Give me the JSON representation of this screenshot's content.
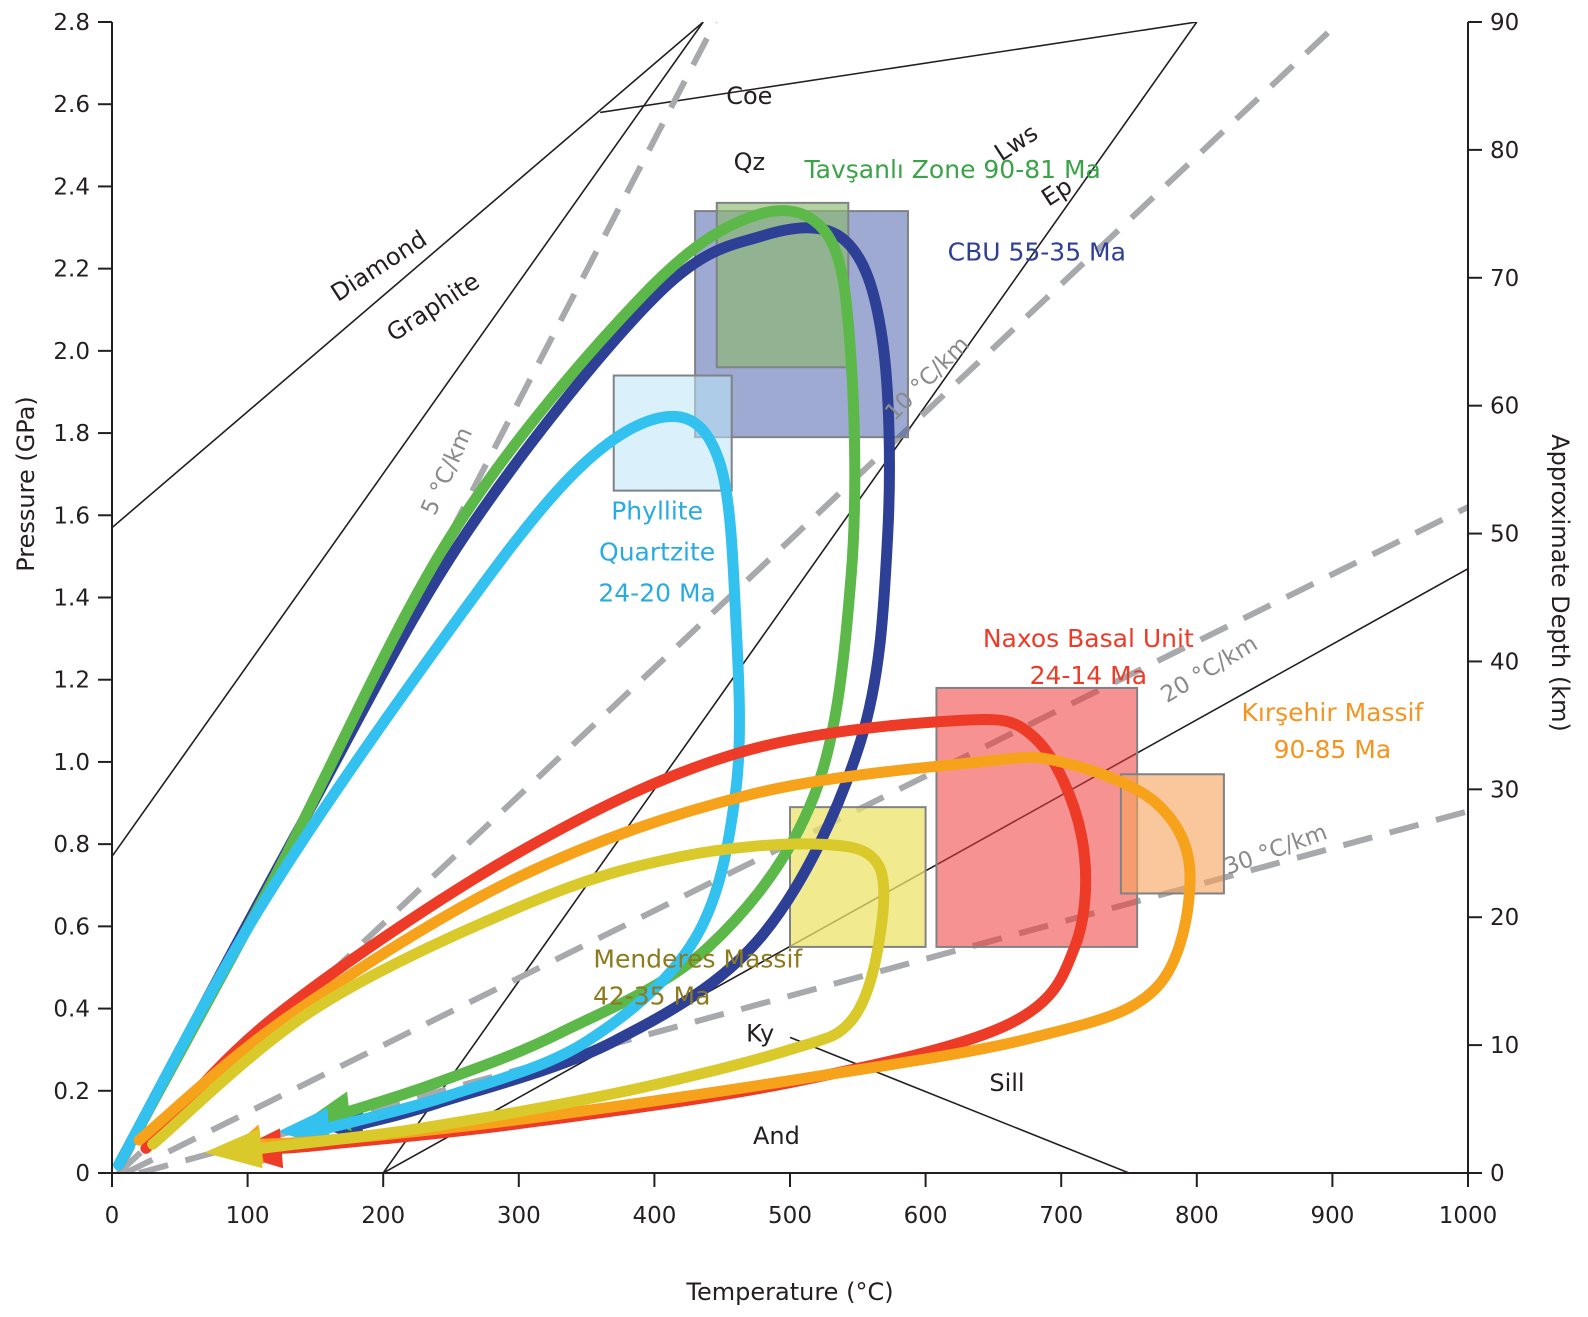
{
  "chart_data": {
    "type": "line",
    "xlabel": "Temperature (°C)",
    "ylabel": "Pressure (GPa)",
    "y2label": "Approximate Depth (km)",
    "xlim": [
      0,
      1000
    ],
    "ylim": [
      0,
      2.8
    ],
    "y2lim": [
      0,
      90
    ],
    "xticks": [
      0,
      100,
      200,
      300,
      400,
      500,
      600,
      700,
      800,
      900,
      1000
    ],
    "yticks": [
      "0",
      "0.2",
      "0.4",
      "0.6",
      "0.8",
      "1.0",
      "1.2",
      "1.4",
      "1.6",
      "1.8",
      "2.0",
      "2.2",
      "2.4",
      "2.6",
      "2.8"
    ],
    "y2ticks": [
      0,
      10,
      20,
      30,
      40,
      50,
      60,
      70,
      80,
      90
    ],
    "grid": false,
    "phase_boundaries": [
      {
        "name": "Diamond-Graphite",
        "points": [
          [
            0,
            0.77
          ],
          [
            436,
            2.8
          ]
        ]
      },
      {
        "name": "Diamond-Graphite",
        "points": [
          [
            0,
            1.57
          ],
          [
            436,
            2.8
          ]
        ]
      },
      {
        "name": "Coe-Qz",
        "points": [
          [
            360,
            2.58
          ],
          [
            800,
            2.8
          ]
        ]
      },
      {
        "name": "Lws-Ep",
        "points": [
          [
            200,
            0
          ],
          [
            800,
            2.8
          ]
        ]
      },
      {
        "name": "Ky-Sill",
        "points": [
          [
            200,
            0
          ],
          [
            1000,
            1.47
          ]
        ]
      },
      {
        "name": "Sill-And",
        "points": [
          [
            500,
            0.33
          ],
          [
            750,
            0
          ]
        ]
      }
    ],
    "phase_labels": [
      {
        "text": "Diamond",
        "x": 200,
        "y": 2.19,
        "rot": -33
      },
      {
        "text": "Graphite",
        "x": 240,
        "y": 2.09,
        "rot": -33
      },
      {
        "text": "Coe",
        "x": 470,
        "y": 2.6,
        "rot": 0
      },
      {
        "text": "Qz",
        "x": 470,
        "y": 2.44,
        "rot": 0
      },
      {
        "text": "Lws",
        "x": 670,
        "y": 2.49,
        "rot": -33
      },
      {
        "text": "Ep",
        "x": 700,
        "y": 2.37,
        "rot": -33
      },
      {
        "text": "Ky",
        "x": 478,
        "y": 0.32,
        "rot": 0
      },
      {
        "text": "Sill",
        "x": 660,
        "y": 0.2,
        "rot": 0
      },
      {
        "text": "And",
        "x": 490,
        "y": 0.07,
        "rot": 0
      }
    ],
    "geotherms": [
      {
        "label": "5 °C/km",
        "points": [
          [
            5,
            0
          ],
          [
            445,
            2.8
          ]
        ],
        "lx": 252,
        "ly": 1.7,
        "rot": -66
      },
      {
        "label": "10 °C/km",
        "points": [
          [
            5,
            0
          ],
          [
            905,
            2.8
          ]
        ],
        "lx": 605,
        "ly": 1.92,
        "rot": -45
      },
      {
        "label": "20 °C/km",
        "points": [
          [
            10,
            0
          ],
          [
            1000,
            1.62
          ]
        ],
        "lx": 812,
        "ly": 1.21,
        "rot": -31
      },
      {
        "label": "30 °C/km",
        "points": [
          [
            20,
            0
          ],
          [
            1000,
            0.88
          ]
        ],
        "lx": 860,
        "ly": 0.77,
        "rot": -20
      }
    ],
    "boxes": [
      {
        "name": "CBU",
        "color": "#3d56a6",
        "opacity": 0.5,
        "x": [
          430,
          587
        ],
        "y": [
          1.79,
          2.34
        ]
      },
      {
        "name": "Tavsanli",
        "color": "#8cb870",
        "opacity": 0.65,
        "x": [
          446,
          543
        ],
        "y": [
          1.96,
          2.36
        ]
      },
      {
        "name": "Phyllite",
        "color": "#bce5f7",
        "opacity": 0.55,
        "x": [
          370,
          457
        ],
        "y": [
          1.66,
          1.94
        ]
      },
      {
        "name": "Naxos",
        "color": "#ee3b39",
        "opacity": 0.55,
        "x": [
          608,
          756
        ],
        "y": [
          0.55,
          1.18
        ]
      },
      {
        "name": "Menderes",
        "color": "#ece36a",
        "opacity": 0.75,
        "x": [
          500,
          600
        ],
        "y": [
          0.55,
          0.89
        ]
      },
      {
        "name": "Kirsehir",
        "color": "#f6a15b",
        "opacity": 0.6,
        "x": [
          744,
          820
        ],
        "y": [
          0.68,
          0.97
        ]
      }
    ],
    "series": [
      {
        "name": "CBU 55-35 Ma",
        "color": "#2e3f96",
        "points": [
          [
            5,
            0.02
          ],
          [
            140,
            0.85
          ],
          [
            260,
            1.55
          ],
          [
            400,
            2.13
          ],
          [
            480,
            2.28
          ],
          [
            540,
            2.27
          ],
          [
            568,
            2.03
          ],
          [
            572,
            1.55
          ],
          [
            552,
            1.05
          ],
          [
            480,
            0.58
          ],
          [
            370,
            0.32
          ],
          [
            240,
            0.17
          ],
          [
            185,
            0.12
          ]
        ],
        "arrow_tip": [
          148,
          0.12
        ]
      },
      {
        "name": "Tavsanli Zone 90-81 Ma",
        "color": "#5cb848",
        "points": [
          [
            5,
            0.02
          ],
          [
            120,
            0.72
          ],
          [
            250,
            1.55
          ],
          [
            390,
            2.13
          ],
          [
            475,
            2.33
          ],
          [
            528,
            2.28
          ],
          [
            545,
            1.98
          ],
          [
            545,
            1.45
          ],
          [
            518,
            0.92
          ],
          [
            440,
            0.55
          ],
          [
            330,
            0.34
          ],
          [
            240,
            0.22
          ],
          [
            175,
            0.15
          ]
        ],
        "arrow_tip": [
          148,
          0.14
        ]
      },
      {
        "name": "Phyllite Quartzite 24-20 Ma",
        "color": "#33c1f0",
        "points": [
          [
            5,
            0.02
          ],
          [
            110,
            0.65
          ],
          [
            240,
            1.28
          ],
          [
            340,
            1.7
          ],
          [
            410,
            1.84
          ],
          [
            448,
            1.73
          ],
          [
            460,
            1.35
          ],
          [
            460,
            0.93
          ],
          [
            430,
            0.57
          ],
          [
            350,
            0.32
          ],
          [
            250,
            0.19
          ],
          [
            160,
            0.11
          ]
        ],
        "arrow_tip": [
          122,
          0.1
        ]
      },
      {
        "name": "Naxos Basal Unit 24-14 Ma",
        "color": "#ee3b27",
        "points": [
          [
            25,
            0.06
          ],
          [
            120,
            0.38
          ],
          [
            300,
            0.78
          ],
          [
            460,
            1.02
          ],
          [
            620,
            1.1
          ],
          [
            680,
            1.06
          ],
          [
            715,
            0.82
          ],
          [
            710,
            0.55
          ],
          [
            660,
            0.36
          ],
          [
            500,
            0.22
          ],
          [
            300,
            0.12
          ],
          [
            160,
            0.07
          ],
          [
            125,
            0.06
          ]
        ],
        "arrow_tip": [
          88,
          0.05
        ]
      },
      {
        "name": "Kirsehir Massif 90-85 Ma",
        "color": "#f7a21b",
        "points": [
          [
            20,
            0.08
          ],
          [
            130,
            0.38
          ],
          [
            300,
            0.72
          ],
          [
            470,
            0.92
          ],
          [
            640,
            1.0
          ],
          [
            700,
            1.0
          ],
          [
            770,
            0.9
          ],
          [
            795,
            0.72
          ],
          [
            770,
            0.45
          ],
          [
            680,
            0.33
          ],
          [
            510,
            0.23
          ],
          [
            300,
            0.13
          ],
          [
            160,
            0.08
          ],
          [
            110,
            0.07
          ]
        ],
        "arrow_tip": [
          88,
          0.06
        ]
      },
      {
        "name": "Menderes Massif 42-35 Ma",
        "color": "#d9c92b",
        "points": [
          [
            30,
            0.07
          ],
          [
            150,
            0.4
          ],
          [
            310,
            0.66
          ],
          [
            420,
            0.77
          ],
          [
            520,
            0.8
          ],
          [
            565,
            0.75
          ],
          [
            565,
            0.55
          ],
          [
            545,
            0.37
          ],
          [
            500,
            0.3
          ],
          [
            380,
            0.2
          ],
          [
            230,
            0.11
          ],
          [
            135,
            0.07
          ],
          [
            110,
            0.06
          ]
        ],
        "arrow_tip": [
          68,
          0.05
        ]
      }
    ],
    "annotations": [
      {
        "text": "Tavşanlı Zone 90-81 Ma",
        "color": "#3aa348",
        "x": 620,
        "y": 2.42
      },
      {
        "text": "CBU 55-35 Ma",
        "color": "#2e3f96",
        "x": 682,
        "y": 2.22
      },
      {
        "text": "Phyllite",
        "color": "#29abe2",
        "x": 402,
        "y": 1.59
      },
      {
        "text": "Quartzite",
        "color": "#29abe2",
        "x": 402,
        "y": 1.49
      },
      {
        "text": "24-20 Ma",
        "color": "#29abe2",
        "x": 402,
        "y": 1.39
      },
      {
        "text": "Naxos Basal Unit",
        "color": "#ee3b27",
        "x": 720,
        "y": 1.28
      },
      {
        "text": "24-14 Ma",
        "color": "#ee3b27",
        "x": 720,
        "y": 1.19
      },
      {
        "text": "Kırşehir Massif",
        "color": "#f7931e",
        "x": 900,
        "y": 1.1
      },
      {
        "text": "90-85 Ma",
        "color": "#f7931e",
        "x": 900,
        "y": 1.01
      },
      {
        "text": "Menderes Massif",
        "color": "#8c7a1d",
        "x": 432,
        "y": 0.5
      },
      {
        "text": "42-35 Ma",
        "color": "#8c7a1d",
        "x": 398,
        "y": 0.41
      }
    ]
  }
}
